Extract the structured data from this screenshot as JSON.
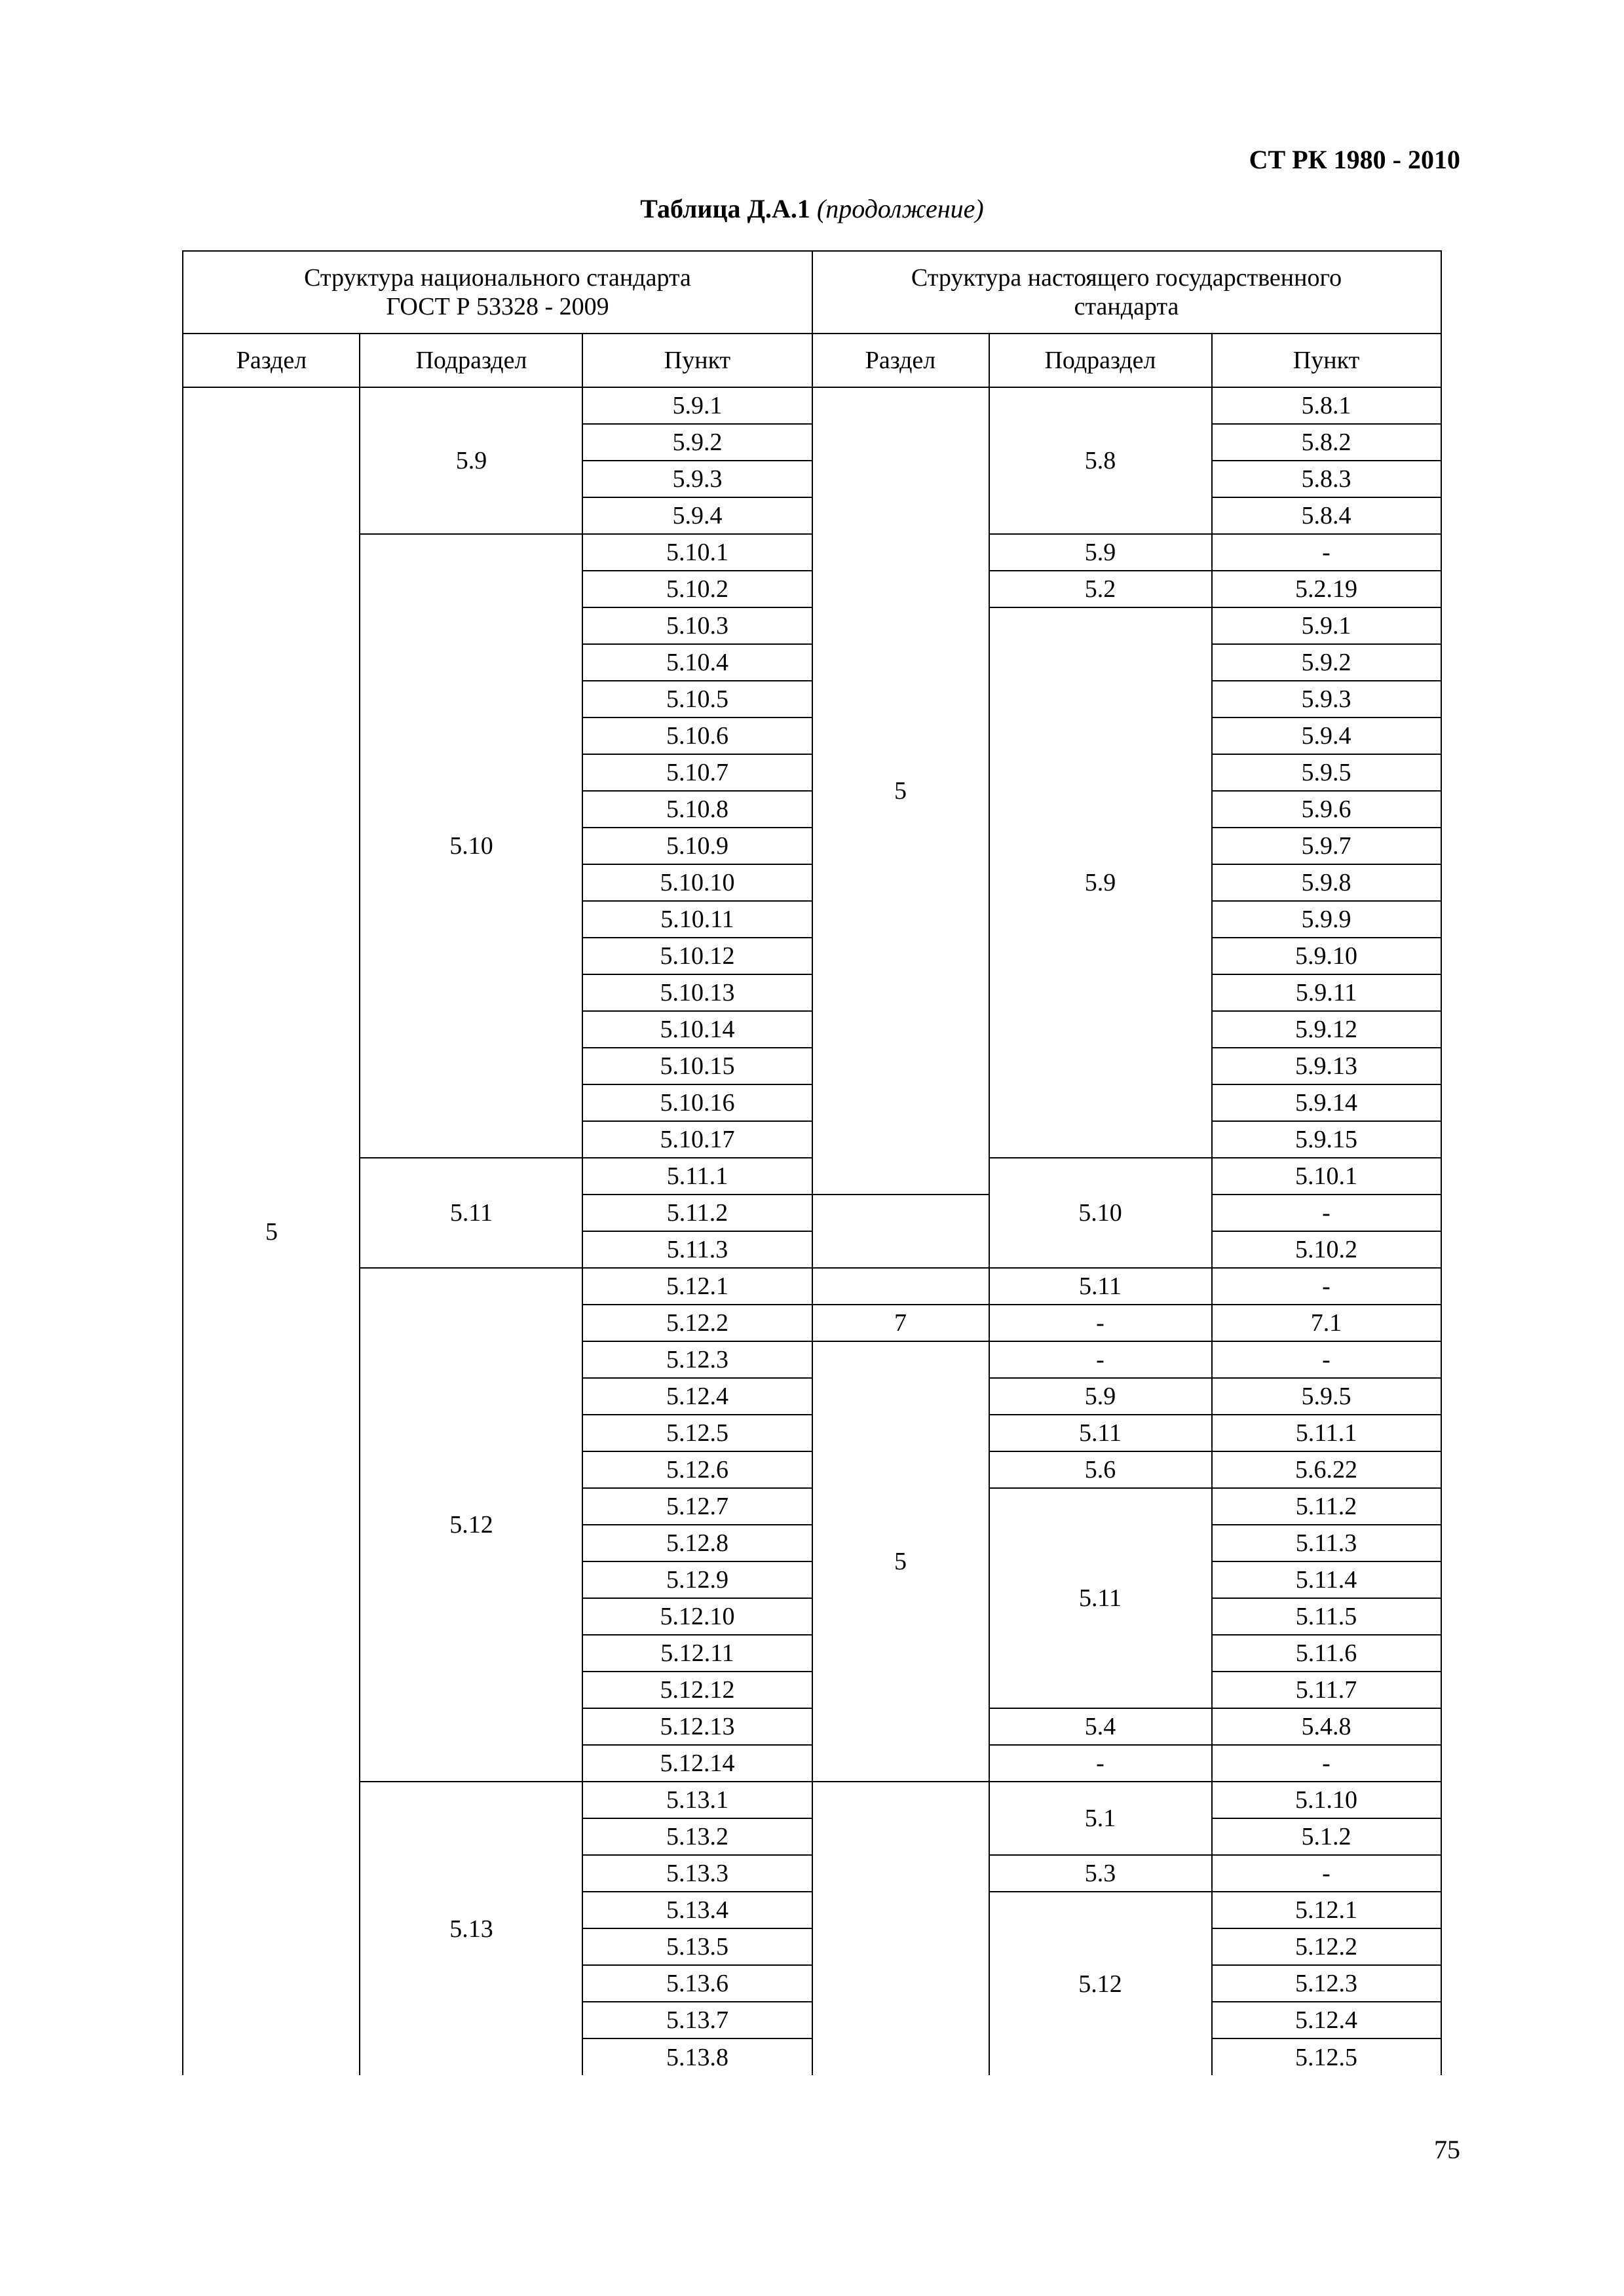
{
  "doc_id": "СТ РК 1980 - 2010",
  "caption_bold": "Таблица Д.А.1",
  "caption_ital": " (продолжение)",
  "page_number": "75",
  "header": {
    "group_left": "Структура национального стандарта\nГОСТ Р 53328 - 2009",
    "group_right": "Структура настоящего государственного\nстандарта",
    "col_razdel": "Раздел",
    "col_podrazdel": "Подраздел",
    "col_punkt": "Пункт"
  },
  "left_razdel": "5",
  "rows": [
    {
      "l_sub": "5.9",
      "l_sub_span": 4,
      "l_p": "5.9.1",
      "r_raz": "5",
      "r_raz_span": 22,
      "r_sub": "5.8",
      "r_sub_span": 4,
      "r_p": "5.8.1"
    },
    {
      "l_p": "5.9.2",
      "r_p": "5.8.2"
    },
    {
      "l_p": "5.9.3",
      "r_p": "5.8.3"
    },
    {
      "l_p": "5.9.4",
      "r_p": "5.8.4"
    },
    {
      "l_sub": "5.10",
      "l_sub_span": 17,
      "l_p": "5.10.1",
      "r_sub": "5.9",
      "r_sub_span": 1,
      "r_p": "-"
    },
    {
      "l_p": "5.10.2",
      "r_sub": "5.2",
      "r_sub_span": 1,
      "r_p": "5.2.19"
    },
    {
      "l_p": "5.10.3",
      "r_sub": "5.9",
      "r_sub_span": 15,
      "r_p": "5.9.1"
    },
    {
      "l_p": "5.10.4",
      "r_p": "5.9.2"
    },
    {
      "l_p": "5.10.5",
      "r_p": "5.9.3"
    },
    {
      "l_p": "5.10.6",
      "r_p": "5.9.4"
    },
    {
      "l_p": "5.10.7",
      "r_p": "5.9.5"
    },
    {
      "l_p": "5.10.8",
      "r_p": "5.9.6"
    },
    {
      "l_p": "5.10.9",
      "r_p": "5.9.7"
    },
    {
      "l_p": "5.10.10",
      "r_p": "5.9.8"
    },
    {
      "l_p": "5.10.11",
      "r_p": "5.9.9"
    },
    {
      "l_p": "5.10.12",
      "r_p": "5.9.10"
    },
    {
      "l_p": "5.10.13",
      "r_p": "5.9.11"
    },
    {
      "l_p": "5.10.14",
      "r_p": "5.9.12"
    },
    {
      "l_p": "5.10.15",
      "r_p": "5.9.13"
    },
    {
      "l_p": "5.10.16",
      "r_p": "5.9.14"
    },
    {
      "l_p": "5.10.17",
      "r_p": "5.9.15"
    },
    {
      "l_sub": "5.11",
      "l_sub_span": 3,
      "l_p": "5.11.1",
      "r_sub": "5.10",
      "r_sub_span": 3,
      "r_p": "5.10.1"
    },
    {
      "l_p": "5.11.2",
      "r_raz": "",
      "r_raz_span": 1,
      "r_raz_class": "no-tb",
      "r_p": "-"
    },
    {
      "l_p": "5.11.3",
      "r_raz": "",
      "r_raz_span": 1,
      "r_raz_class": "no-top",
      "r_p": "5.10.2"
    },
    {
      "l_sub": "5.12",
      "l_sub_span": 14,
      "l_p": "5.12.1",
      "r_raz": "",
      "r_raz_span": 1,
      "r_sub": "5.11",
      "r_sub_span": 1,
      "r_p": "-"
    },
    {
      "l_p": "5.12.2",
      "r_raz": "7",
      "r_raz_span": 1,
      "r_sub": "-",
      "r_sub_span": 1,
      "r_p": "7.1"
    },
    {
      "l_p": "5.12.3",
      "r_raz": "5",
      "r_raz_span": 12,
      "r_sub": "-",
      "r_sub_span": 1,
      "r_p": "-"
    },
    {
      "l_p": "5.12.4",
      "r_sub": "5.9",
      "r_sub_span": 1,
      "r_p": "5.9.5"
    },
    {
      "l_p": "5.12.5",
      "r_sub": "5.11",
      "r_sub_span": 1,
      "r_p": "5.11.1"
    },
    {
      "l_p": "5.12.6",
      "r_sub": "5.6",
      "r_sub_span": 1,
      "r_p": "5.6.22"
    },
    {
      "l_p": "5.12.7",
      "r_sub": "5.11",
      "r_sub_span": 6,
      "r_p": "5.11.2"
    },
    {
      "l_p": "5.12.8",
      "r_p": "5.11.3"
    },
    {
      "l_p": "5.12.9",
      "r_p": "5.11.4"
    },
    {
      "l_p": "5.12.10",
      "r_p": "5.11.5"
    },
    {
      "l_p": "5.12.11",
      "r_p": "5.11.6"
    },
    {
      "l_p": "5.12.12",
      "r_p": "5.11.7"
    },
    {
      "l_p": "5.12.13",
      "r_sub": "5.4",
      "r_sub_span": 1,
      "r_p": "5.4.8"
    },
    {
      "l_p": "5.12.14",
      "r_sub": "-",
      "r_sub_span": 1,
      "r_p": "-"
    },
    {
      "l_sub": "5.13",
      "l_sub_span": 8,
      "l_p": "5.13.1",
      "r_raz": "",
      "r_raz_span": 8,
      "r_raz_class": "no-bottom",
      "r_sub": "5.1",
      "r_sub_span": 2,
      "r_p": "5.1.10"
    },
    {
      "l_p": "5.13.2",
      "r_p": "5.1.2"
    },
    {
      "l_p": "5.13.3",
      "r_sub": "5.3",
      "r_sub_span": 1,
      "r_p": "-"
    },
    {
      "l_p": "5.13.4",
      "r_sub": "5.12",
      "r_sub_span": 5,
      "r_sub_class": "no-bottom",
      "r_p": "5.12.1"
    },
    {
      "l_p": "5.13.5",
      "r_p": "5.12.2"
    },
    {
      "l_p": "5.13.6",
      "r_p": "5.12.3"
    },
    {
      "l_p": "5.13.7",
      "r_p": "5.12.4"
    },
    {
      "l_p": "5.13.8",
      "last": true,
      "r_p": "5.12.5"
    }
  ]
}
